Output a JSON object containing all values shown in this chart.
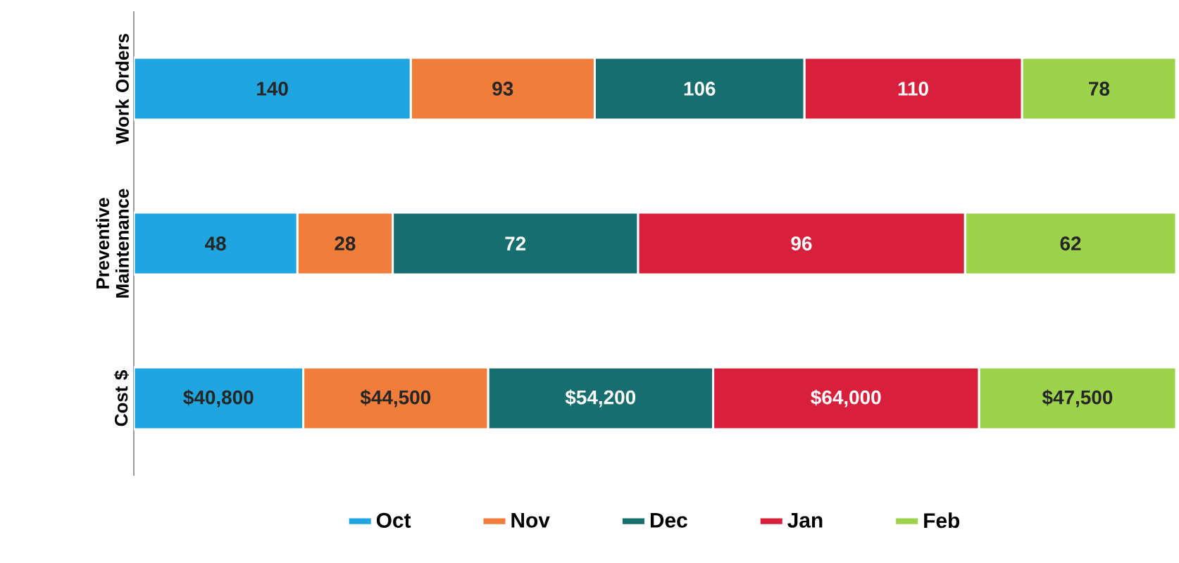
{
  "chart_data": [
    {
      "type": "bar",
      "orientation": "horizontal",
      "stacked": true,
      "categories": [
        "Work Orders"
      ],
      "series": [
        {
          "color": "#1fa6e0",
          "values": [
            140
          ],
          "value_labels": [
            "140"
          ]
        },
        {
          "color": "#f07d3a",
          "values": [
            93
          ],
          "value_labels": [
            "93"
          ]
        },
        {
          "color": "#166e6e",
          "values": [
            106
          ],
          "value_labels": [
            "106"
          ]
        },
        {
          "color": "#d8203c",
          "values": [
            110
          ],
          "value_labels": [
            "110"
          ]
        },
        {
          "color": "#9cd34a",
          "values": [
            78
          ],
          "value_labels": [
            "78"
          ]
        }
      ]
    },
    {
      "type": "bar",
      "orientation": "horizontal",
      "stacked": true,
      "categories": [
        "Preventive Maintenance"
      ],
      "series": [
        {
          "color": "#1fa6e0",
          "values": [
            48
          ],
          "value_labels": [
            "48"
          ]
        },
        {
          "color": "#f07d3a",
          "values": [
            28
          ],
          "value_labels": [
            "28"
          ]
        },
        {
          "color": "#166e6e",
          "values": [
            72
          ],
          "value_labels": [
            "72"
          ]
        },
        {
          "color": "#d8203c",
          "values": [
            96
          ],
          "value_labels": [
            "96"
          ]
        },
        {
          "color": "#9cd34a",
          "values": [
            62
          ],
          "value_labels": [
            "62"
          ]
        }
      ]
    },
    {
      "type": "bar",
      "orientation": "horizontal",
      "stacked": true,
      "legend": "bottom",
      "categories": [
        "Cost $"
      ],
      "series": [
        {
          "name": "Oct",
          "color": "#1fa6e0",
          "values": [
            40800
          ],
          "value_labels": [
            "$40,800"
          ]
        },
        {
          "name": "Nov",
          "color": "#f07d3a",
          "values": [
            44500
          ],
          "value_labels": [
            "$44,500"
          ]
        },
        {
          "name": "Dec",
          "color": "#166e6e",
          "values": [
            54200
          ],
          "value_labels": [
            "$54,200"
          ]
        },
        {
          "name": "Jan",
          "color": "#d8203c",
          "values": [
            64000
          ],
          "value_labels": [
            "$64,000"
          ]
        },
        {
          "name": "Feb",
          "color": "#9cd34a",
          "values": [
            47500
          ],
          "value_labels": [
            "$47,500"
          ]
        }
      ]
    }
  ]
}
